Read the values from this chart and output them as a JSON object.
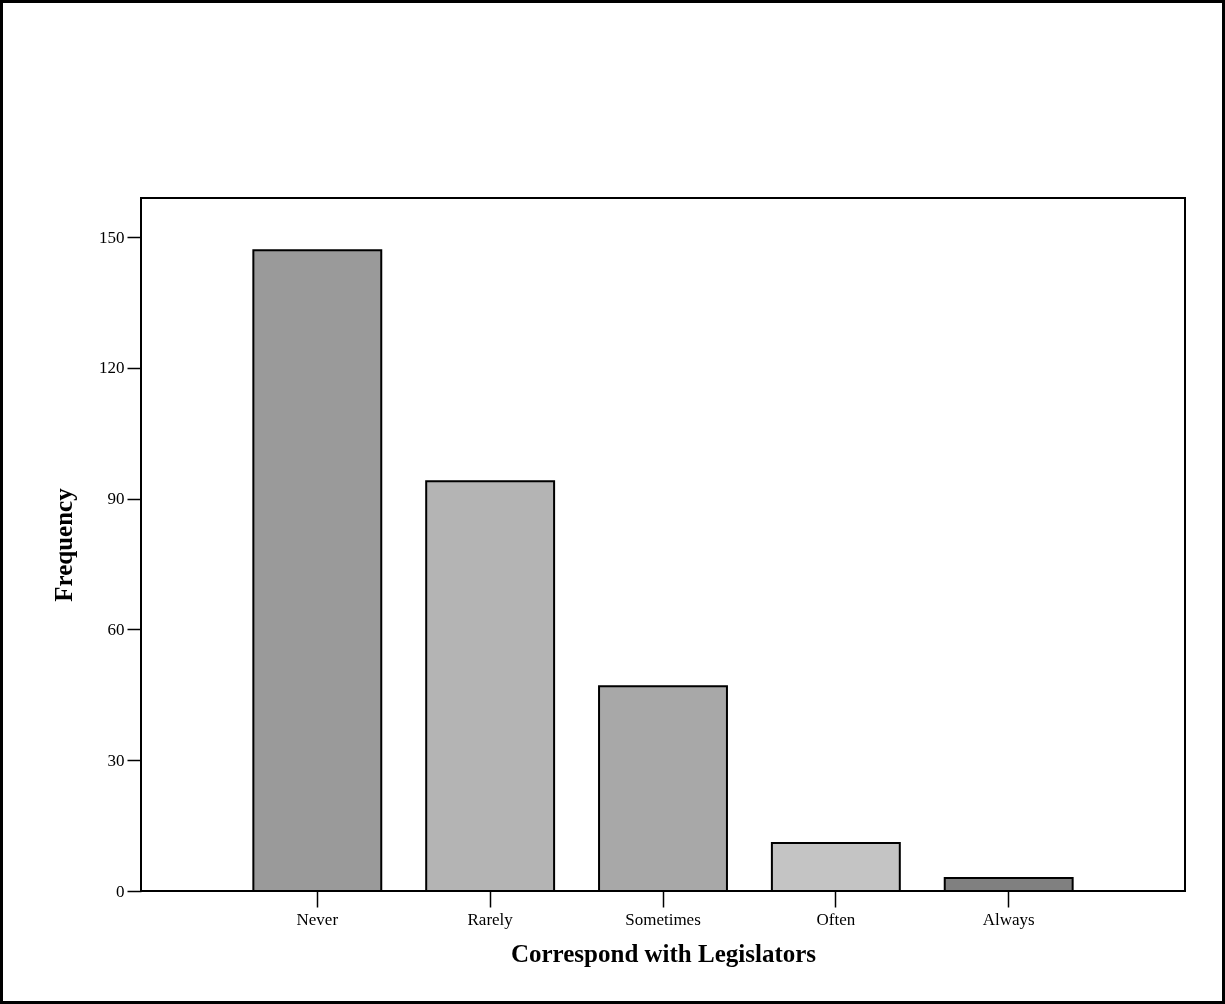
{
  "chart_data": {
    "type": "bar",
    "xlabel": "Correspond with Legislators",
    "ylabel": "Frequency",
    "categories": [
      "Never",
      "Rarely",
      "Sometimes",
      "Often",
      "Always"
    ],
    "values": [
      147,
      94,
      47,
      11,
      3
    ],
    "colors": [
      "#9a9a9a",
      "#b4b4b4",
      "#a8a8a8",
      "#c4c4c4",
      "#808080"
    ],
    "ylim": [
      0,
      159
    ],
    "yticks": [
      0,
      30,
      60,
      90,
      120,
      150
    ],
    "grid": false
  }
}
